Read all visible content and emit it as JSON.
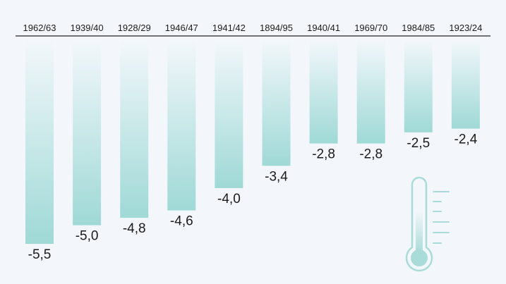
{
  "chart_data": {
    "type": "bar",
    "categories": [
      "1962/63",
      "1939/40",
      "1928/29",
      "1946/47",
      "1941/42",
      "1894/95",
      "1940/41",
      "1969/70",
      "1984/85",
      "1923/24"
    ],
    "values": [
      -5.5,
      -5.0,
      -4.8,
      -4.6,
      -4.0,
      -3.4,
      -2.8,
      -2.8,
      -2.5,
      -2.4
    ],
    "value_labels": [
      "-5,5",
      "-5,0",
      "-4,8",
      "-4,6",
      "-4,0",
      "-3,4",
      "-2,8",
      "-2,8",
      "-2,5",
      "-2,4"
    ],
    "ylim": [
      -5.5,
      0
    ],
    "grid": false,
    "bar_color_top": "#f3f7fb",
    "bar_color_bottom": "#9fd9d6",
    "axis_color": "#222222",
    "icon": "thermometer-icon",
    "icon_color": "#a9dcd8"
  }
}
